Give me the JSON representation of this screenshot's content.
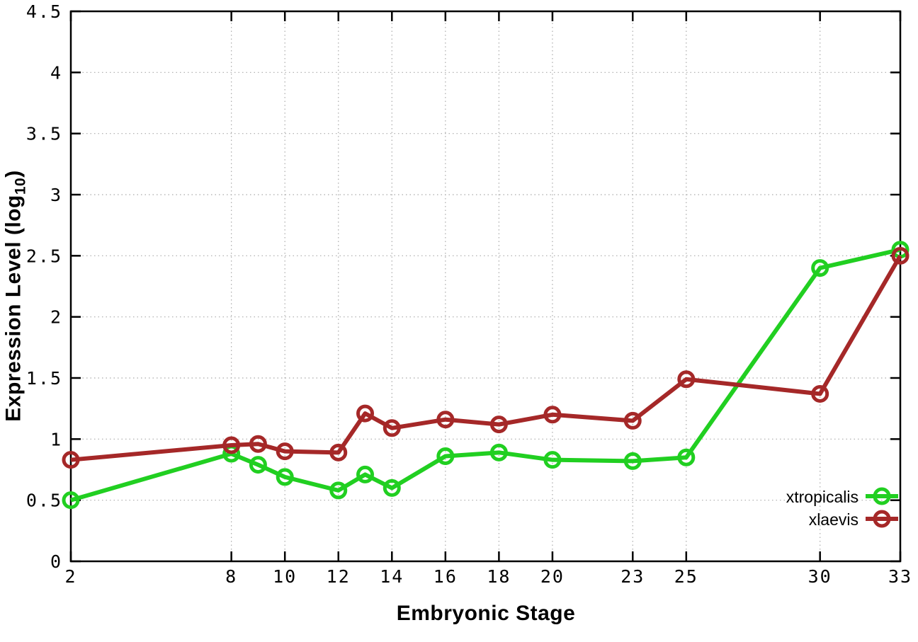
{
  "chart_data": {
    "type": "line",
    "title": "",
    "xlabel": "Embryonic Stage",
    "ylabel_prefix": "Expression Level (log",
    "ylabel_sub": "10",
    "ylabel_suffix": ")",
    "xlim": [
      2,
      33
    ],
    "ylim": [
      0,
      4.5
    ],
    "x_ticks": [
      2,
      8,
      10,
      12,
      14,
      16,
      18,
      20,
      23,
      25,
      30,
      33
    ],
    "x_tick_labels": [
      "2",
      "8",
      "10",
      "12",
      "14",
      "16",
      "18",
      "20",
      "23",
      "25",
      "30",
      "33"
    ],
    "y_ticks": [
      0,
      0.5,
      1,
      1.5,
      2,
      2.5,
      3,
      3.5,
      4,
      4.5
    ],
    "y_tick_labels": [
      "0",
      "0.5",
      "1",
      "1.5",
      "2",
      "2.5",
      "3",
      "3.5",
      "4",
      "4.5"
    ],
    "grid": true,
    "legend_position": "inside-bottom-right",
    "x": [
      2,
      8,
      9,
      10,
      12,
      13,
      14,
      16,
      18,
      20,
      23,
      25,
      30,
      33
    ],
    "series": [
      {
        "name": "xtropicalis",
        "color": "#21cf21",
        "values": [
          0.5,
          0.88,
          0.79,
          0.69,
          0.58,
          0.71,
          0.6,
          0.86,
          0.89,
          0.83,
          0.82,
          0.85,
          2.4,
          2.55
        ]
      },
      {
        "name": "xlaevis",
        "color": "#a52828",
        "values": [
          0.83,
          0.95,
          0.96,
          0.9,
          0.89,
          1.21,
          1.09,
          1.16,
          1.12,
          1.2,
          1.15,
          1.49,
          1.37,
          2.5
        ]
      }
    ],
    "colors": {
      "axis": "#000000",
      "grid": "#aaaaaa",
      "background": "#ffffff"
    }
  }
}
